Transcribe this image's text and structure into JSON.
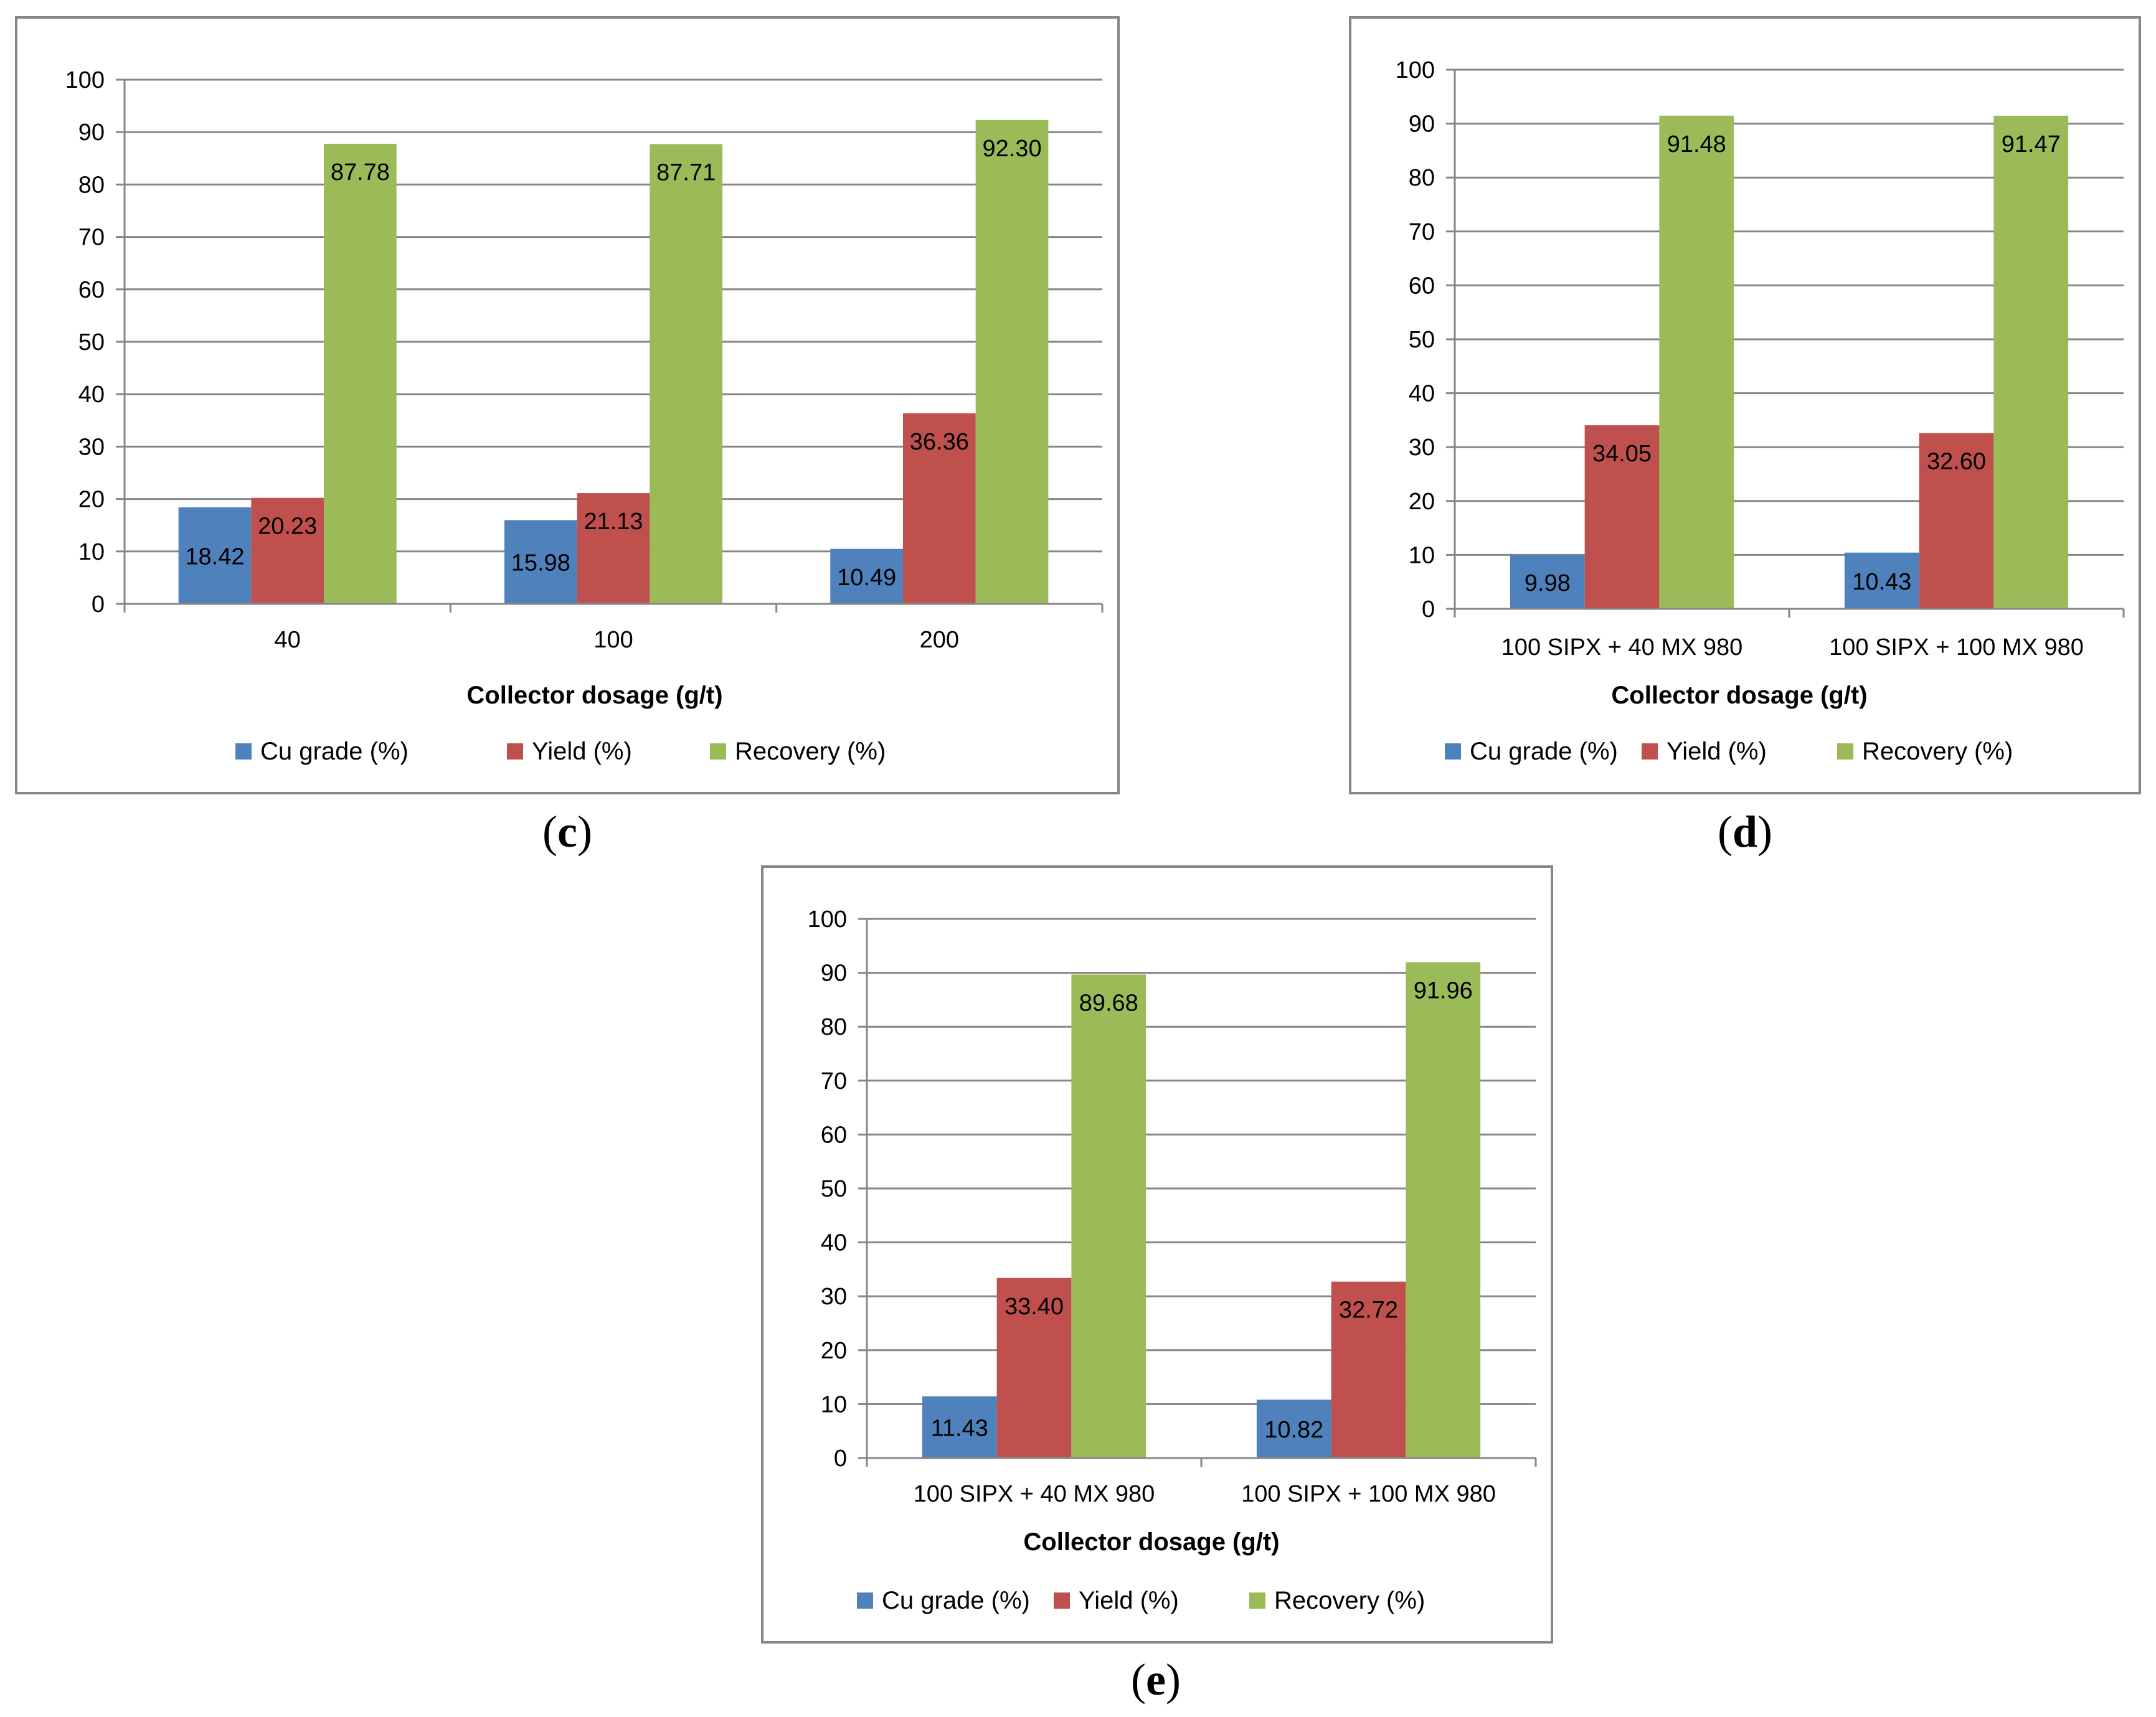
{
  "figure": {
    "captions": [
      "(c)",
      "(d)",
      "(e)"
    ]
  },
  "colors": {
    "cu_grade": "#4f81bd",
    "yield": "#c0504d",
    "recovery": "#9bbb59",
    "grid": "#868686",
    "axis": "#868686",
    "text": "#000000"
  },
  "chart_data": [
    {
      "id": "c",
      "type": "bar",
      "categories": [
        "40",
        "100",
        "200"
      ],
      "series": [
        {
          "name": "Cu grade (%)",
          "values": [
            18.42,
            15.98,
            10.49
          ],
          "labels": [
            "18.42",
            "15.98",
            "10.49"
          ]
        },
        {
          "name": "Yield (%)",
          "values": [
            20.23,
            21.13,
            36.36
          ],
          "labels": [
            "20.23",
            "21.13",
            "36.36"
          ]
        },
        {
          "name": "Recovery (%)",
          "values": [
            87.78,
            87.71,
            92.3
          ],
          "labels": [
            "87.78",
            "87.71",
            "92.30"
          ]
        }
      ],
      "xlabel": "Collector dosage (g/t)",
      "ylabel": "",
      "ylim": [
        0,
        100
      ],
      "yticks": [
        "0",
        "10",
        "20",
        "30",
        "40",
        "50",
        "60",
        "70",
        "80",
        "90",
        "100"
      ],
      "grid": true,
      "legend": "bottom"
    },
    {
      "id": "d",
      "type": "bar",
      "categories": [
        "100 SIPX + 40 MX 980",
        "100 SIPX + 100 MX 980"
      ],
      "series": [
        {
          "name": "Cu grade (%)",
          "values": [
            9.98,
            10.43
          ],
          "labels": [
            "9.98",
            "10.43"
          ]
        },
        {
          "name": "Yield (%)",
          "values": [
            34.05,
            32.6
          ],
          "labels": [
            "34.05",
            "32.60"
          ]
        },
        {
          "name": "Recovery (%)",
          "values": [
            91.48,
            91.47
          ],
          "labels": [
            "91.48",
            "91.47"
          ]
        }
      ],
      "xlabel": "Collector dosage (g/t)",
      "ylabel": "",
      "ylim": [
        0,
        100
      ],
      "yticks": [
        "0",
        "10",
        "20",
        "30",
        "40",
        "50",
        "60",
        "70",
        "80",
        "90",
        "100"
      ],
      "grid": true,
      "legend": "bottom"
    },
    {
      "id": "e",
      "type": "bar",
      "categories": [
        "100 SIPX + 40 MX 980",
        "100 SIPX + 100 MX 980"
      ],
      "series": [
        {
          "name": "Cu grade (%)",
          "values": [
            11.43,
            10.82
          ],
          "labels": [
            "11.43",
            "10.82"
          ]
        },
        {
          "name": "Yield (%)",
          "values": [
            33.4,
            32.72
          ],
          "labels": [
            "33.40",
            "32.72"
          ]
        },
        {
          "name": "Recovery (%)",
          "values": [
            89.68,
            91.96
          ],
          "labels": [
            "89.68",
            "91.96"
          ]
        }
      ],
      "xlabel": "Collector dosage (g/t)",
      "ylabel": "",
      "ylim": [
        0,
        100
      ],
      "yticks": [
        "0",
        "10",
        "20",
        "30",
        "40",
        "50",
        "60",
        "70",
        "80",
        "90",
        "100"
      ],
      "grid": true,
      "legend": "bottom"
    }
  ]
}
